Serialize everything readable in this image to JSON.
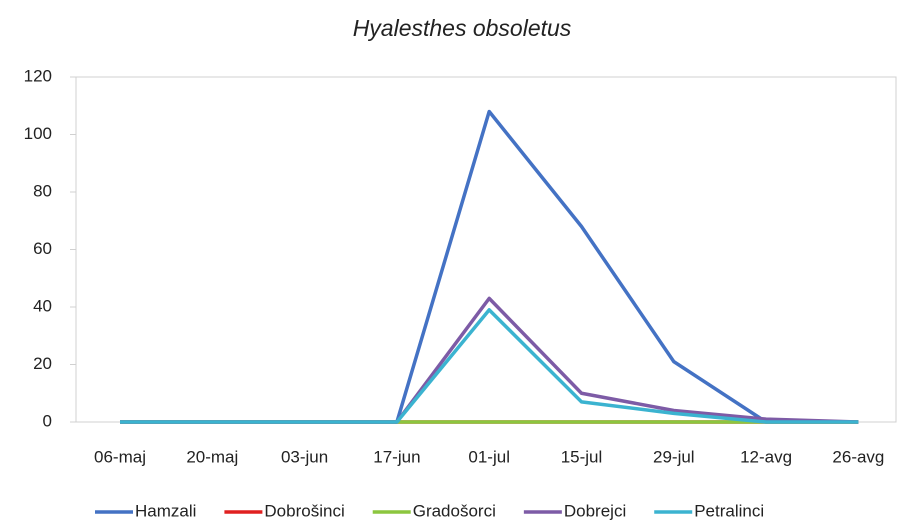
{
  "chart_data": {
    "type": "line",
    "title": "Hyalesthes obsoletus",
    "categories": [
      "06-maj",
      "20-maj",
      "03-jun",
      "17-jun",
      "01-jul",
      "15-jul",
      "29-jul",
      "12-avg",
      "26-avg"
    ],
    "series": [
      {
        "name": "Hamzali",
        "color": "#4472c4",
        "values": [
          0,
          0,
          0,
          0,
          108,
          68,
          21,
          0,
          0
        ]
      },
      {
        "name": "Dobrošinci",
        "color": "#e02020",
        "values": [
          0,
          0,
          0,
          0,
          0,
          0,
          0,
          0,
          0
        ]
      },
      {
        "name": "Gradošorci",
        "color": "#8cc63f",
        "values": [
          0,
          0,
          0,
          0,
          0,
          0,
          0,
          0,
          0
        ]
      },
      {
        "name": "Dobrejci",
        "color": "#7d5ba6",
        "values": [
          0,
          0,
          0,
          0,
          43,
          10,
          4,
          1,
          0
        ]
      },
      {
        "name": "Petralinci",
        "color": "#3bb3d0",
        "values": [
          0,
          0,
          0,
          0,
          39,
          7,
          3,
          0,
          0
        ]
      }
    ],
    "ylim": [
      0,
      120
    ],
    "yticks": [
      0,
      20,
      40,
      60,
      80,
      100,
      120
    ],
    "legend": "bottom"
  }
}
